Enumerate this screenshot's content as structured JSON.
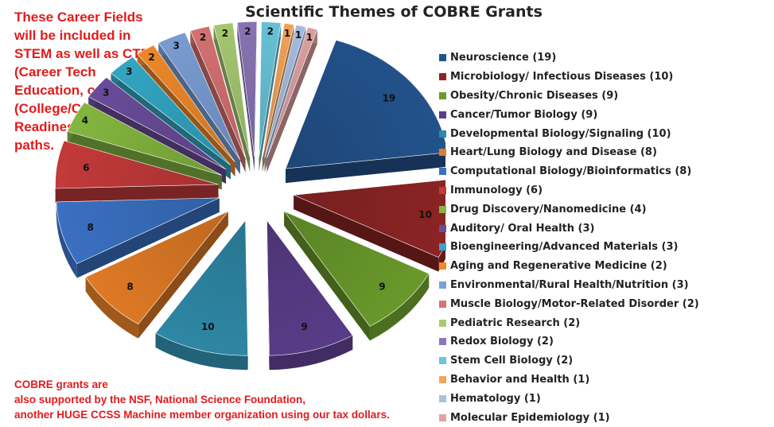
{
  "chart_data": {
    "type": "pie",
    "title": "Scientific Themes of COBRE Grants",
    "slices": [
      {
        "label": "Neuroscience",
        "value": 19,
        "color": "#23528c"
      },
      {
        "label": "Microbiology/ Infectious Diseases",
        "value": 10,
        "color": "#8c2424"
      },
      {
        "label": "Obesity/Chronic Diseases",
        "value": 9,
        "color": "#6a9a2b"
      },
      {
        "label": "Cancer/Tumor Biology",
        "value": 9,
        "color": "#5a3d8a"
      },
      {
        "label": "Developmental Biology/Signaling",
        "value": 10,
        "color": "#2f8aa8"
      },
      {
        "label": "Heart/Lung Biology and Disease",
        "value": 8,
        "color": "#e07a26"
      },
      {
        "label": "Computational Biology/Bioinformatics",
        "value": 8,
        "color": "#3a70c2"
      },
      {
        "label": "Immunology",
        "value": 6,
        "color": "#c33a3a"
      },
      {
        "label": "Drug Discovery/Nanomedicine",
        "value": 4,
        "color": "#84b640"
      },
      {
        "label": "Auditory/ Oral Health",
        "value": 3,
        "color": "#6a4c9a"
      },
      {
        "label": "Bioengineering/Advanced Materials",
        "value": 3,
        "color": "#33a7c4"
      },
      {
        "label": "Aging and Regenerative Medicine",
        "value": 2,
        "color": "#f08a2a"
      },
      {
        "label": "Environmental/Rural Health/Nutrition",
        "value": 3,
        "color": "#7b9fd6"
      },
      {
        "label": "Muscle Biology/Motor-Related Disorder",
        "value": 2,
        "color": "#d97373"
      },
      {
        "label": "Pediatric Research",
        "value": 2,
        "color": "#a8cb72"
      },
      {
        "label": "Redox Biology",
        "value": 2,
        "color": "#8c76b8"
      },
      {
        "label": "Stem Cell Biology",
        "value": 2,
        "color": "#6ac6dc"
      },
      {
        "label": "Behavior and Health",
        "value": 1,
        "color": "#f5a55a"
      },
      {
        "label": "Hematology",
        "value": 1,
        "color": "#a9bfe3"
      },
      {
        "label": "Molecular Epidemiology",
        "value": 1,
        "color": "#e0a3a3"
      }
    ],
    "legend_position": "right"
  },
  "notes": {
    "top": "These Career Fields\nwill be included in\nSTEM as well as CTE\n(Career Tech\nEducation, or CCR\n(College/Career\nReadiness)\npaths.",
    "bottom": "COBRE grants are\nalso supported by the NSF, National Science Foundation,\nanother HUGE CCSS Machine member organization using our tax dollars."
  }
}
